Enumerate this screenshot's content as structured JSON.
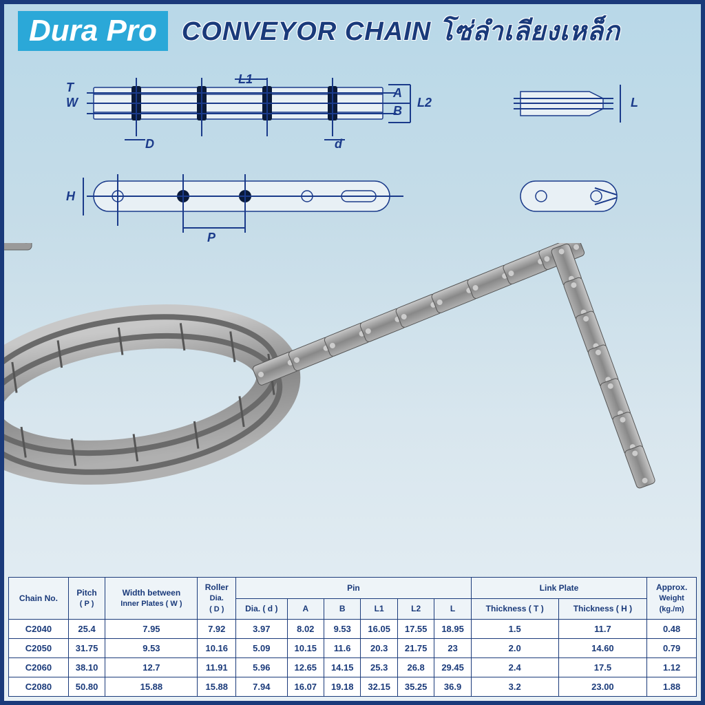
{
  "header": {
    "brand": "Dura Pro",
    "title_en": "CONVEYOR CHAIN",
    "title_th": "โซ่ลำเลียงเหล็ก"
  },
  "diagram": {
    "labels": [
      "T",
      "W",
      "D",
      "L1",
      "d",
      "A",
      "B",
      "L2",
      "L",
      "H",
      "P"
    ],
    "line_color": "#1a3a8a",
    "dim_color": "#1a3a8a"
  },
  "colors": {
    "border": "#1a3a7a",
    "logo_bg": "#2ba8d8",
    "text": "#1a3a7a"
  },
  "table": {
    "headers": {
      "chain_no": "Chain No.",
      "pitch": "Pitch",
      "pitch_sym": "( P )",
      "width": "Width between",
      "width2": "Inner Plates ( W )",
      "roller": "Roller",
      "roller2": "Dia.",
      "roller3": "( D )",
      "pin": "Pin",
      "pin_dia": "Dia. ( d )",
      "a": "A",
      "b": "B",
      "l1": "L1",
      "l2": "L2",
      "l": "L",
      "link_plate": "Link Plate",
      "thick_t": "Thickness ( T )",
      "thick_h": "Thickness ( H )",
      "weight": "Approx.",
      "weight2": "Weight",
      "weight3": "(kg./m)"
    },
    "rows": [
      {
        "no": "C2040",
        "p": "25.4",
        "w": "7.95",
        "d_roller": "7.92",
        "d_pin": "3.97",
        "a": "8.02",
        "b": "9.53",
        "l1": "16.05",
        "l2": "17.55",
        "l": "18.95",
        "t": "1.5",
        "h": "11.7",
        "wt": "0.48"
      },
      {
        "no": "C2050",
        "p": "31.75",
        "w": "9.53",
        "d_roller": "10.16",
        "d_pin": "5.09",
        "a": "10.15",
        "b": "11.6",
        "l1": "20.3",
        "l2": "21.75",
        "l": "23",
        "t": "2.0",
        "h": "14.60",
        "wt": "0.79"
      },
      {
        "no": "C2060",
        "p": "38.10",
        "w": "12.7",
        "d_roller": "11.91",
        "d_pin": "5.96",
        "a": "12.65",
        "b": "14.15",
        "l1": "25.3",
        "l2": "26.8",
        "l": "29.45",
        "t": "2.4",
        "h": "17.5",
        "wt": "1.12"
      },
      {
        "no": "C2080",
        "p": "50.80",
        "w": "15.88",
        "d_roller": "15.88",
        "d_pin": "7.94",
        "a": "16.07",
        "b": "19.18",
        "l1": "32.15",
        "l2": "35.25",
        "l": "36.9",
        "t": "3.2",
        "h": "23.00",
        "wt": "1.88"
      }
    ]
  }
}
